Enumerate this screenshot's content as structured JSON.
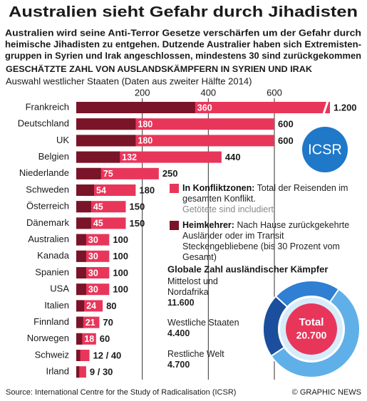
{
  "title": "Australien sieht Gefahr durch Jihadisten",
  "subtitle": [
    "Australien wird seine Anti-Terror Gesetze verschärfen um der Gefahr durch",
    "heimische Jihadisten zu entgehen. Dutzende Australier haben sich Extremisten-",
    "gruppen in Syrien und Irak angeschlossen, mindestens 30 sind zurückgekommen"
  ],
  "logo": "ICSR",
  "source": "Source: International Centre for the Study of Radicalisation (ICSR)",
  "credit": "© GRAPHIC NEWS",
  "chart_data": [
    {
      "type": "bar",
      "orientation": "horizontal",
      "title": "GESCHÄTZTE ZAHL VON AUSLANDSKÄMPFERN IN SYRIEN UND IRAK",
      "subtitle": "Auswahl westlicher Staaten (Daten aus zweiter Hälfte 2014)",
      "categories": [
        "Frankreich",
        "Deutschland",
        "UK",
        "Belgien",
        "Niederlande",
        "Schweden",
        "Österreich",
        "Dänemark",
        "Australien",
        "Kanada",
        "Spanien",
        "USA",
        "Italien",
        "Finnland",
        "Norwegen",
        "Schweiz",
        "Irland"
      ],
      "xlim": [
        0,
        600
      ],
      "xticks": [
        200,
        400,
        600
      ],
      "grid": true,
      "series": [
        {
          "name": "In Konfliktzonen:",
          "description": "Total der Reisenden im gesamten Konflikt.",
          "note": "Getötete sind includiert",
          "color": "#e8365a",
          "values": [
            1200,
            600,
            600,
            440,
            250,
            180,
            150,
            150,
            100,
            100,
            100,
            100,
            80,
            70,
            60,
            40,
            30
          ],
          "value_labels": [
            "1.200",
            "600",
            "600",
            "440",
            "250",
            "180",
            "150",
            "150",
            "100",
            "100",
            "100",
            "100",
            "80",
            "70",
            "60",
            "12 / 40",
            "9 / 30"
          ]
        },
        {
          "name": "Heimkehrer:",
          "description": "Nach Hause zurückgekehrte Ausländer oder im Transit Steckengebliebene (bis 30 Prozent vom Gesamt)",
          "color": "#7a1428",
          "values": [
            360,
            180,
            180,
            132,
            75,
            54,
            45,
            45,
            30,
            30,
            30,
            30,
            24,
            21,
            18,
            12,
            9
          ],
          "value_labels": [
            "360",
            "180",
            "180",
            "132",
            "75",
            "54",
            "45",
            "45",
            "30",
            "30",
            "30",
            "30",
            "24",
            "21",
            "18",
            null,
            null
          ]
        }
      ]
    },
    {
      "type": "pie",
      "donut": true,
      "title": "Globale Zahl ausländischer Kämpfer",
      "categories": [
        "Mittelost und Nordafrika",
        "Westliche Staaten",
        "Restliche Welt"
      ],
      "values": [
        11600,
        4400,
        4700
      ],
      "value_labels": [
        "11.600",
        "4.400",
        "4.700"
      ],
      "colors": [
        "#5fb0e8",
        "#1b4f9e",
        "#2f7fd2"
      ],
      "center_label": "Total",
      "total": {
        "value": 20700,
        "label": "20.700"
      }
    }
  ]
}
